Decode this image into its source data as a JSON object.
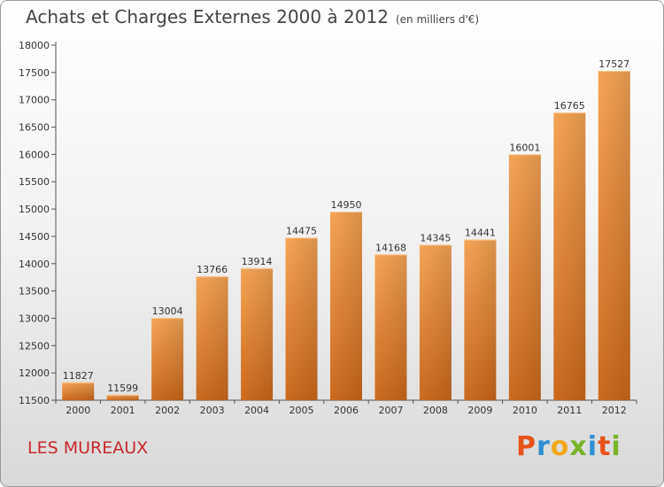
{
  "title": "Achats et Charges Externes 2000 à 2012",
  "subtitle": "(en milliers d'€)",
  "city": "LES MUREAUX",
  "logo": {
    "letters": [
      "P",
      "r",
      "o",
      "x",
      "i",
      "t",
      "i"
    ],
    "colors": [
      "#e8531a",
      "#2e8fd1",
      "#f2a81c",
      "#7ab42a",
      "#2e8fd1",
      "#e8531a",
      "#7ab42a"
    ]
  },
  "chart_data": {
    "type": "bar",
    "categories": [
      "2000",
      "2001",
      "2002",
      "2003",
      "2004",
      "2005",
      "2006",
      "2007",
      "2008",
      "2009",
      "2010",
      "2011",
      "2012"
    ],
    "values": [
      11827,
      11599,
      13004,
      13766,
      13914,
      14475,
      14950,
      14168,
      14345,
      14441,
      16001,
      16765,
      17527
    ],
    "value_labels": [
      "11827",
      "11599",
      "13004",
      "13766",
      "13914",
      "14475",
      "14950",
      "14168",
      "14345",
      "14441",
      "16001",
      "16765",
      "17527"
    ],
    "ylim": [
      11500,
      18000
    ],
    "yticks": [
      11500,
      12000,
      12500,
      13000,
      13500,
      14000,
      14500,
      15000,
      15500,
      16000,
      16500,
      17000,
      17500,
      18000
    ],
    "ytick_labels": [
      "11500",
      "12000",
      "12500",
      "13000",
      "13500",
      "14000",
      "14500",
      "15000",
      "15500",
      "16000",
      "16500",
      "17000",
      "17500",
      "18000"
    ],
    "grid": false,
    "bar_color": "#f09a4a"
  }
}
